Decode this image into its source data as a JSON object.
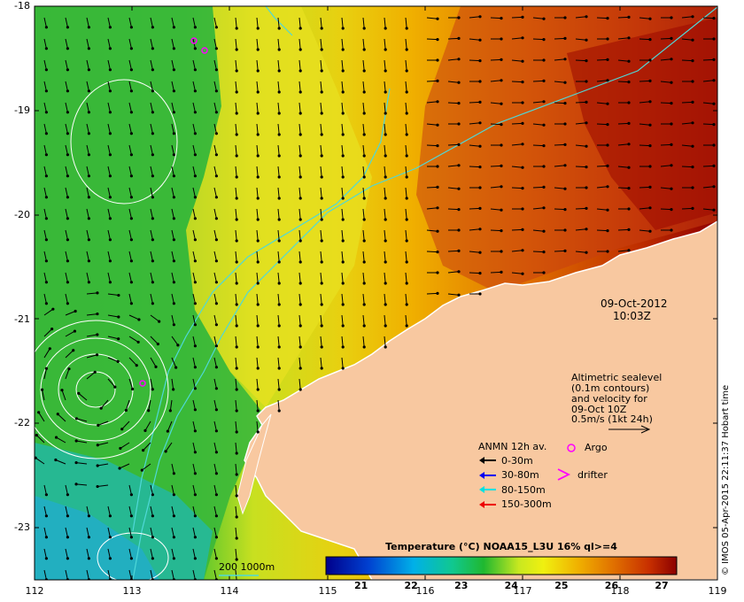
{
  "date_line": "09-Oct-2012",
  "time_line": "10:03Z",
  "altimetry": {
    "l1": "Altimetric sealevel",
    "l2": "(0.1m contours)",
    "l3": "and velocity for",
    "l4": "09-Oct 10Z",
    "l5": "0.5m/s (1kt 24h)"
  },
  "legend": {
    "title": "ANMN 12h av.",
    "items": [
      {
        "label": "0-30m",
        "color": "#000000"
      },
      {
        "label": "30-80m",
        "color": "#0000ee"
      },
      {
        "label": "80-150m",
        "color": "#00e0e0"
      },
      {
        "label": "150-300m",
        "color": "#ee0000"
      }
    ],
    "argo": "Argo",
    "drifter": "drifter"
  },
  "isobath_label": "200  1000m",
  "colorbar": {
    "title": "Temperature (°C) NOAA15_L3U 16% ql>=4",
    "ticks": [
      "21",
      "22",
      "23",
      "24",
      "25",
      "26",
      "27"
    ],
    "tick_values": [
      21,
      22,
      23,
      24,
      25,
      26,
      27
    ],
    "range": [
      20.3,
      27.3
    ]
  },
  "axes": {
    "x_ticks": [
      "112",
      "113",
      "114",
      "115",
      "116",
      "117",
      "118",
      "119"
    ],
    "y_ticks": [
      "-18",
      "-19",
      "-20",
      "-21",
      "-22",
      "-23"
    ]
  },
  "credit": "© IMOS 05-Apr-2015 22:11:37 Hobart time",
  "colors": {
    "land": "#f8c8a0",
    "isobath": "#4fd8d8",
    "contour": "#ffffff",
    "argo": "#ff00ff"
  }
}
